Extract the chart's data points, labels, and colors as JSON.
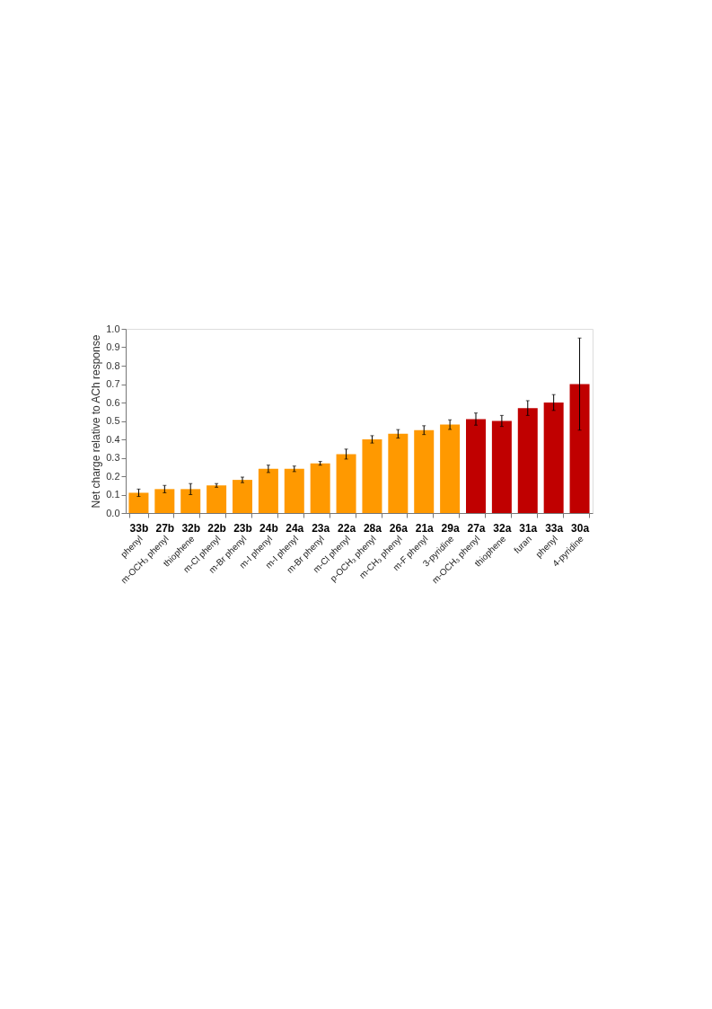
{
  "chart_data": {
    "type": "bar",
    "ylabel": "Net charge relative to ACh response",
    "categories": [
      "33b",
      "27b",
      "32b",
      "22b",
      "23b",
      "24b",
      "24a",
      "23a",
      "22a",
      "28a",
      "26a",
      "21a",
      "29a",
      "27a",
      "32a",
      "31a",
      "33a",
      "30a"
    ],
    "values": [
      0.11,
      0.13,
      0.13,
      0.15,
      0.18,
      0.24,
      0.24,
      0.27,
      0.32,
      0.4,
      0.43,
      0.45,
      0.48,
      0.51,
      0.5,
      0.57,
      0.6,
      0.7
    ],
    "errors": [
      0.02,
      0.02,
      0.03,
      0.01,
      0.015,
      0.02,
      0.015,
      0.01,
      0.027,
      0.02,
      0.023,
      0.024,
      0.026,
      0.033,
      0.03,
      0.04,
      0.043,
      0.25
    ],
    "colors": [
      "#ff9900",
      "#ff9900",
      "#ff9900",
      "#ff9900",
      "#ff9900",
      "#ff9900",
      "#ff9900",
      "#ff9900",
      "#ff9900",
      "#ff9900",
      "#ff9900",
      "#ff9900",
      "#ff9900",
      "#c00000",
      "#c00000",
      "#c00000",
      "#c00000",
      "#c00000"
    ],
    "ylim": [
      0,
      1
    ],
    "yticks": [
      {
        "value": 0,
        "label": "0.0"
      },
      0.1,
      0.2,
      0.3,
      0.4,
      0.5,
      0.6,
      0.7,
      0.8,
      0.9,
      {
        "value": 1,
        "label": "1.0"
      }
    ],
    "grid": false,
    "annotations": [
      "phenyl",
      "m-OCH₃ phenyl",
      "thiophene",
      "m-Cl phenyl",
      "m-Br phenyl",
      "m-I phenyl",
      "m-I phenyl",
      "m-Br phenyl",
      "m-Cl phenyl",
      "p-OCH₃ phenyl",
      "m-CH₃ phenyl",
      "m-F phenyl",
      "3-pyridine",
      "m-OCH₃ phenyl",
      "thiophene",
      "furan",
      "phenyl",
      "4-pyridine"
    ]
  }
}
